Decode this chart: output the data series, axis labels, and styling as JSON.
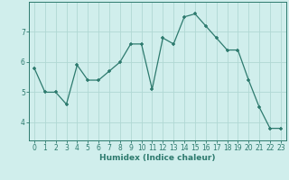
{
  "x": [
    0,
    1,
    2,
    3,
    4,
    5,
    6,
    7,
    8,
    9,
    10,
    11,
    12,
    13,
    14,
    15,
    16,
    17,
    18,
    19,
    20,
    21,
    22,
    23
  ],
  "y": [
    5.8,
    5.0,
    5.0,
    4.6,
    5.9,
    5.4,
    5.4,
    5.7,
    6.0,
    6.6,
    6.6,
    5.1,
    6.8,
    6.6,
    7.5,
    7.6,
    7.2,
    6.8,
    6.4,
    6.4,
    5.4,
    4.5,
    3.8,
    3.8
  ],
  "xlabel": "Humidex (Indice chaleur)",
  "yticks": [
    4,
    5,
    6,
    7
  ],
  "ylim": [
    3.4,
    8.0
  ],
  "xlim": [
    -0.5,
    23.5
  ],
  "line_color": "#2d7a6e",
  "marker": "+",
  "bg_color": "#d0eeec",
  "grid_color": "#b0d8d4",
  "axis_color": "#2d7a6e",
  "tick_color": "#2d7a6e"
}
